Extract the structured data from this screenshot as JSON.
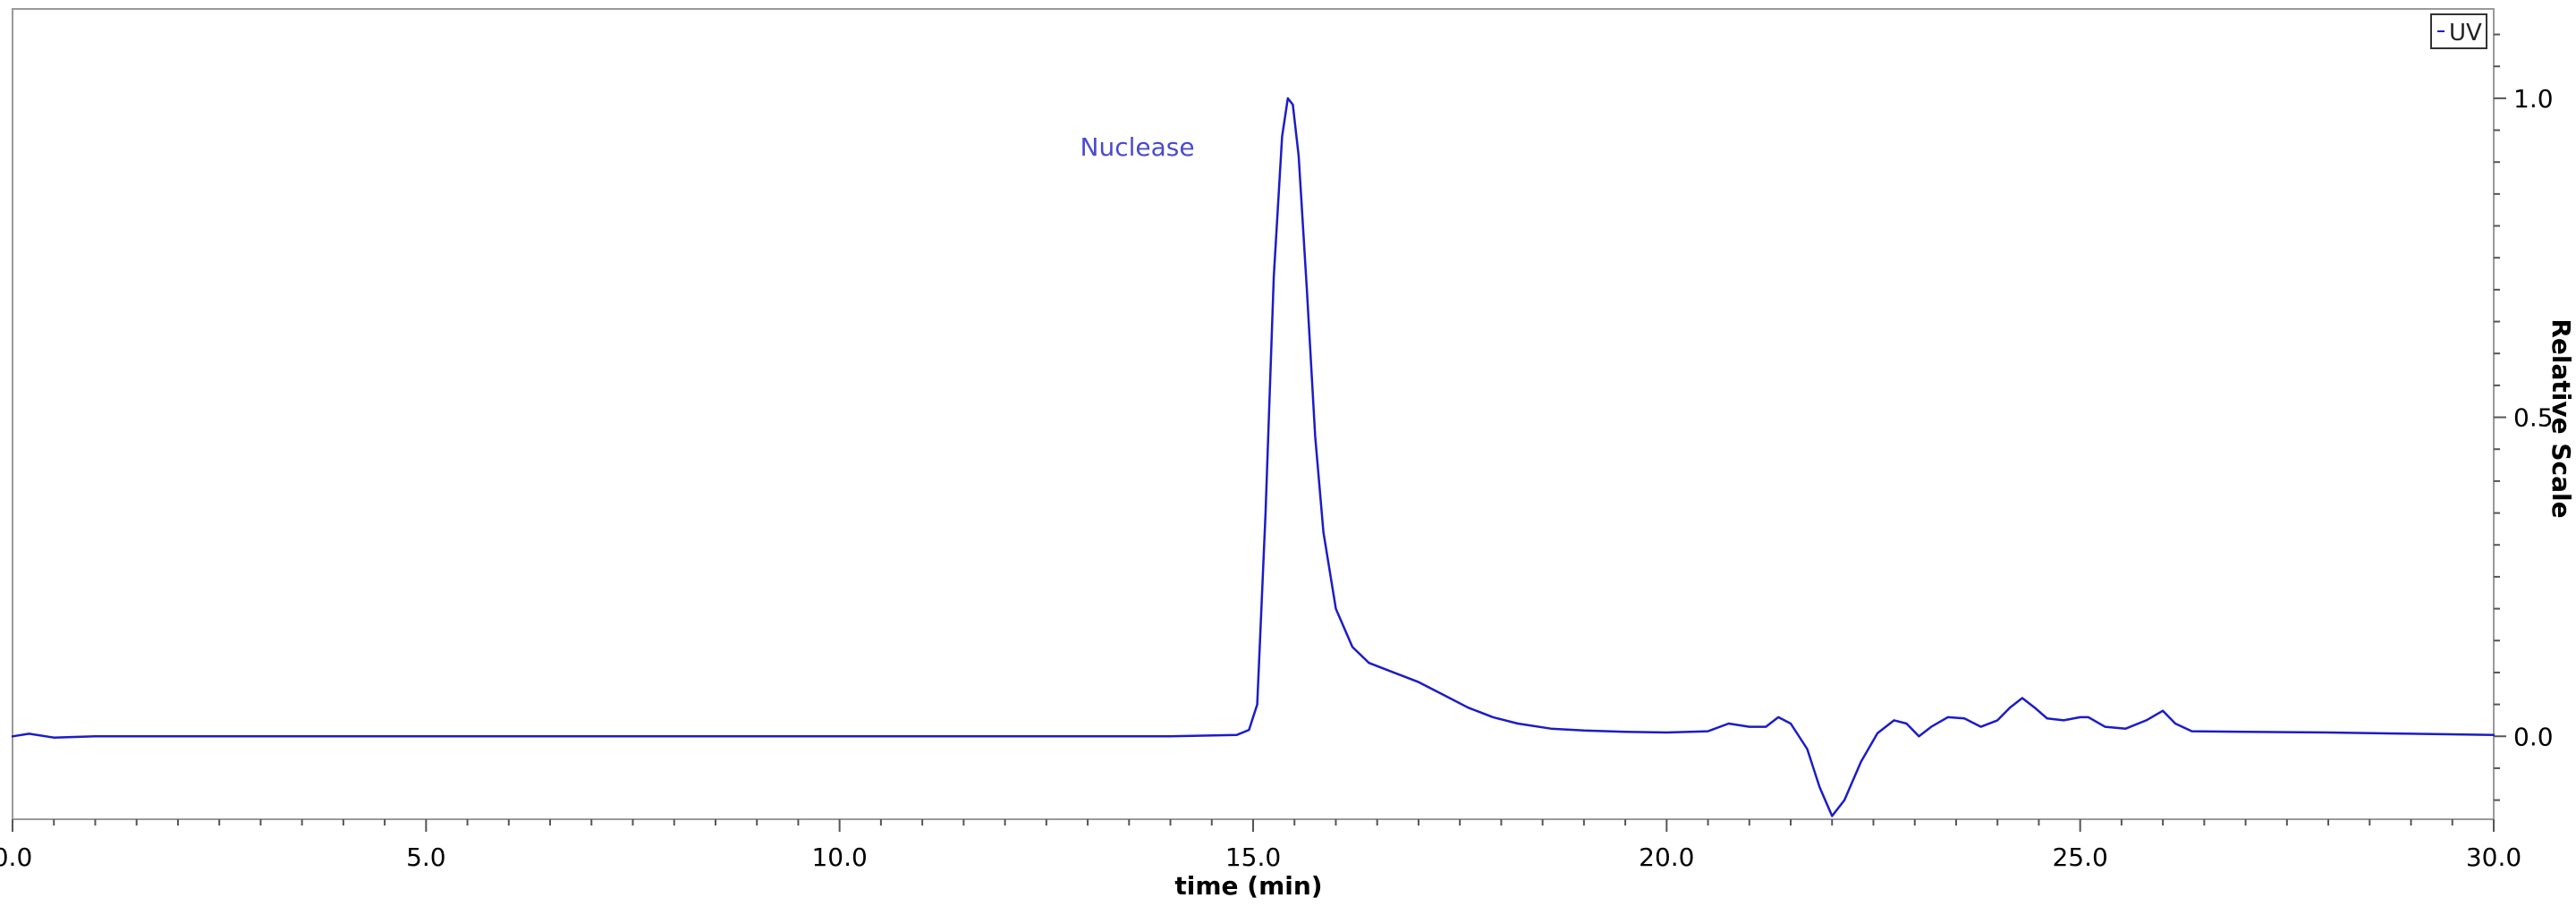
{
  "chart_data": {
    "type": "line",
    "title": "",
    "xlabel": "time (min)",
    "ylabel": "Relative Scale",
    "xlim": [
      0.0,
      30.0
    ],
    "ylim": [
      -0.13,
      1.14
    ],
    "x_ticks": [
      "0.0",
      "5.0",
      "10.0",
      "15.0",
      "20.0",
      "25.0",
      "30.0"
    ],
    "y_ticks": [
      "0.0",
      "0.5",
      "1.0"
    ],
    "y_axis_side": "right",
    "grid": false,
    "legend": {
      "position": "top-right",
      "entries": [
        "UV"
      ]
    },
    "annotations": [
      {
        "text": "Nuclease",
        "x": 13.6,
        "y": 0.91
      }
    ],
    "colors": {
      "series": "#1c1cc8",
      "annotation": "#4a4ad0",
      "axis": "#555555"
    },
    "series": [
      {
        "name": "UV",
        "points": [
          [
            0.0,
            0.0
          ],
          [
            0.2,
            0.004
          ],
          [
            0.5,
            -0.002
          ],
          [
            1.0,
            0.0
          ],
          [
            3.0,
            0.0
          ],
          [
            6.0,
            0.0
          ],
          [
            9.0,
            0.0
          ],
          [
            12.0,
            0.0
          ],
          [
            14.0,
            0.0
          ],
          [
            14.8,
            0.002
          ],
          [
            14.95,
            0.01
          ],
          [
            15.05,
            0.05
          ],
          [
            15.15,
            0.35
          ],
          [
            15.25,
            0.72
          ],
          [
            15.35,
            0.94
          ],
          [
            15.42,
            1.0
          ],
          [
            15.48,
            0.99
          ],
          [
            15.55,
            0.91
          ],
          [
            15.65,
            0.7
          ],
          [
            15.75,
            0.47
          ],
          [
            15.85,
            0.32
          ],
          [
            16.0,
            0.2
          ],
          [
            16.2,
            0.14
          ],
          [
            16.4,
            0.115
          ],
          [
            16.7,
            0.1
          ],
          [
            17.0,
            0.085
          ],
          [
            17.3,
            0.065
          ],
          [
            17.6,
            0.045
          ],
          [
            17.9,
            0.03
          ],
          [
            18.2,
            0.02
          ],
          [
            18.6,
            0.012
          ],
          [
            19.0,
            0.009
          ],
          [
            19.5,
            0.007
          ],
          [
            20.0,
            0.006
          ],
          [
            20.5,
            0.008
          ],
          [
            20.75,
            0.02
          ],
          [
            21.0,
            0.015
          ],
          [
            21.2,
            0.015
          ],
          [
            21.35,
            0.03
          ],
          [
            21.5,
            0.02
          ],
          [
            21.7,
            -0.02
          ],
          [
            21.85,
            -0.08
          ],
          [
            22.0,
            -0.125
          ],
          [
            22.15,
            -0.1
          ],
          [
            22.35,
            -0.04
          ],
          [
            22.55,
            0.005
          ],
          [
            22.75,
            0.025
          ],
          [
            22.9,
            0.02
          ],
          [
            23.05,
            0.0
          ],
          [
            23.2,
            0.015
          ],
          [
            23.4,
            0.03
          ],
          [
            23.6,
            0.028
          ],
          [
            23.8,
            0.015
          ],
          [
            24.0,
            0.025
          ],
          [
            24.15,
            0.045
          ],
          [
            24.3,
            0.06
          ],
          [
            24.45,
            0.045
          ],
          [
            24.6,
            0.028
          ],
          [
            24.8,
            0.025
          ],
          [
            25.0,
            0.03
          ],
          [
            25.1,
            0.03
          ],
          [
            25.3,
            0.015
          ],
          [
            25.55,
            0.012
          ],
          [
            25.8,
            0.025
          ],
          [
            26.0,
            0.04
          ],
          [
            26.15,
            0.02
          ],
          [
            26.35,
            0.008
          ],
          [
            27.0,
            0.007
          ],
          [
            28.0,
            0.006
          ],
          [
            29.0,
            0.004
          ],
          [
            30.0,
            0.002
          ]
        ]
      }
    ]
  }
}
